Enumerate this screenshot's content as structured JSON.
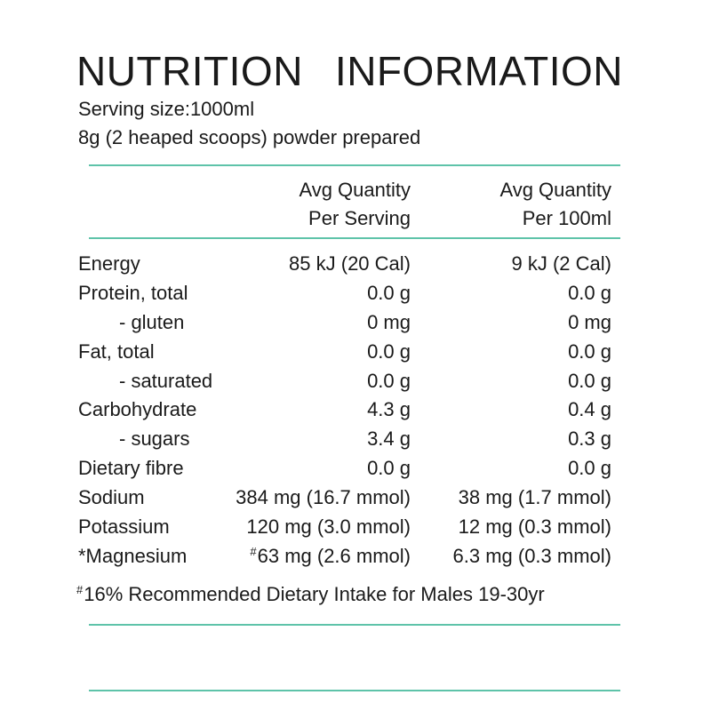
{
  "title": {
    "word1": "NUTRITION",
    "word2": "INFORMATION"
  },
  "serving": {
    "line1": "Serving size:1000ml",
    "line2": "8g (2 heaped scoops) powder prepared"
  },
  "columns": {
    "per_serving": {
      "line1": "Avg Quantity",
      "line2": "Per Serving"
    },
    "per_100ml": {
      "line1": "Avg Quantity",
      "line2": "Per 100ml"
    }
  },
  "rows": [
    {
      "name": "Energy",
      "per_serving": "85 kJ (20 Cal)",
      "per_100ml": "9 kJ (2 Cal)"
    },
    {
      "name": "Protein, total",
      "per_serving": "0.0 g",
      "per_100ml": "0.0 g"
    },
    {
      "name": "- gluten",
      "per_serving": "0 mg",
      "per_100ml": "0 mg"
    },
    {
      "name": "Fat, total",
      "per_serving": "0.0 g",
      "per_100ml": "0.0 g"
    },
    {
      "name": "- saturated",
      "per_serving": "0.0 g",
      "per_100ml": "0.0 g"
    },
    {
      "name": "Carbohydrate",
      "per_serving": "4.3 g",
      "per_100ml": "0.4 g"
    },
    {
      "name": "- sugars",
      "per_serving": "3.4 g",
      "per_100ml": "0.3 g"
    },
    {
      "name": "Dietary fibre",
      "per_serving": "0.0 g",
      "per_100ml": "0.0 g"
    },
    {
      "name": "Sodium",
      "per_serving": "384 mg (16.7 mmol)",
      "per_100ml": "38 mg (1.7 mmol)"
    },
    {
      "name": "Potassium",
      "per_serving": "120 mg (3.0 mmol)",
      "per_100ml": "12 mg (0.3 mmol)"
    },
    {
      "name": "*Magnesium",
      "per_serving_marker": "#",
      "per_serving": "63 mg (2.6 mmol)",
      "per_100ml": "6.3 mg (0.3 mmol)"
    }
  ],
  "footnote": {
    "marker": "#",
    "text": "16% Recommended Dietary Intake for Males 19-30yr"
  },
  "colors": {
    "rule": "#5ec3a9",
    "text": "#1a1a1a"
  }
}
